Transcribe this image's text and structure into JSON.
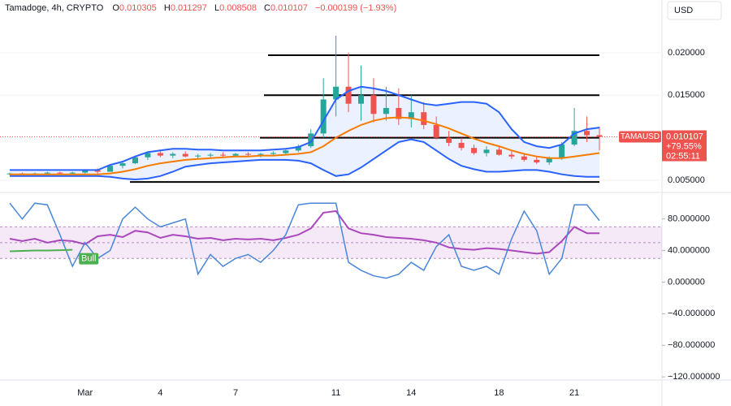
{
  "chart_data": [
    {
      "type": "candlestick",
      "title": "Tamadoge, 4h, CRYPTO",
      "ohlc_labels": [
        "O",
        "H",
        "L",
        "C"
      ],
      "change": "−0.000199 (−1.93%)",
      "currency": "USD",
      "symbol": "TAMAUSD",
      "change_pct": "+79.55%",
      "countdown": "02:55:11",
      "categories": [
        null,
        null,
        null,
        null,
        null,
        null,
        "Mar",
        null,
        null,
        null,
        null,
        null,
        "4",
        null,
        null,
        null,
        null,
        null,
        "7",
        null,
        null,
        null,
        null,
        null,
        null,
        null,
        "11",
        null,
        null,
        null,
        null,
        null,
        "14",
        null,
        null,
        null,
        null,
        null,
        null,
        "18",
        null,
        null,
        null,
        null,
        null,
        "21",
        null,
        null
      ],
      "open": [
        0.0057,
        0.0058,
        0.0057,
        0.0058,
        0.0059,
        0.0058,
        0.0059,
        0.0062,
        0.006,
        0.0067,
        0.007,
        0.0077,
        0.0082,
        0.0079,
        0.0081,
        0.0078,
        0.0079,
        0.008,
        0.0079,
        0.0081,
        0.008,
        0.0081,
        0.0082,
        0.0085,
        0.009,
        0.0105,
        0.0145,
        0.016,
        0.014,
        0.015,
        0.0128,
        0.0135,
        0.0122,
        0.013,
        0.0115,
        0.01,
        0.0094,
        0.0088,
        0.0082,
        0.0086,
        0.008,
        0.0078,
        0.0074,
        0.0071,
        0.0076,
        0.0092,
        0.0108,
        0.010305
      ],
      "high": [
        0.0059,
        0.0059,
        0.0059,
        0.006,
        0.006,
        0.006,
        0.0063,
        0.0064,
        0.0068,
        0.0072,
        0.0079,
        0.0084,
        0.0086,
        0.0083,
        0.0084,
        0.0081,
        0.0082,
        0.0083,
        0.0082,
        0.0083,
        0.0082,
        0.0084,
        0.0086,
        0.0092,
        0.011,
        0.017,
        0.022,
        0.02,
        0.0185,
        0.017,
        0.016,
        0.0158,
        0.015,
        0.0142,
        0.0125,
        0.0108,
        0.01,
        0.0092,
        0.009,
        0.009,
        0.0085,
        0.0082,
        0.0078,
        0.0078,
        0.0095,
        0.0135,
        0.0125,
        0.011297
      ],
      "low": [
        0.0056,
        0.0057,
        0.0056,
        0.0057,
        0.0057,
        0.0057,
        0.0058,
        0.0058,
        0.006,
        0.0064,
        0.0069,
        0.0074,
        0.0077,
        0.0076,
        0.0077,
        0.0075,
        0.0076,
        0.0078,
        0.0077,
        0.0078,
        0.0077,
        0.0079,
        0.008,
        0.0083,
        0.0088,
        0.01,
        0.0125,
        0.013,
        0.012,
        0.0118,
        0.012,
        0.0115,
        0.0112,
        0.011,
        0.0098,
        0.009,
        0.0085,
        0.008,
        0.0078,
        0.0079,
        0.0075,
        0.0072,
        0.0069,
        0.0068,
        0.0074,
        0.009,
        0.0095,
        0.008508
      ],
      "close": [
        0.0058,
        0.0057,
        0.0058,
        0.0059,
        0.0058,
        0.0059,
        0.0062,
        0.006,
        0.0067,
        0.007,
        0.0077,
        0.0082,
        0.0079,
        0.0081,
        0.0078,
        0.0079,
        0.008,
        0.0079,
        0.0081,
        0.008,
        0.0081,
        0.0082,
        0.0085,
        0.009,
        0.0105,
        0.0145,
        0.016,
        0.014,
        0.015,
        0.0128,
        0.0135,
        0.0122,
        0.013,
        0.0115,
        0.01,
        0.0094,
        0.0088,
        0.0082,
        0.0086,
        0.008,
        0.0078,
        0.0074,
        0.0071,
        0.0076,
        0.0092,
        0.0108,
        0.0103,
        0.010107
      ],
      "up_color": "#26a69a",
      "down_color": "#ef5350",
      "overlays": {
        "upper": [
          0.0062,
          0.0062,
          0.0062,
          0.0062,
          0.0062,
          0.0062,
          0.0062,
          0.0062,
          0.0068,
          0.0072,
          0.0078,
          0.0083,
          0.0085,
          0.0087,
          0.0087,
          0.0086,
          0.0086,
          0.0085,
          0.0085,
          0.0085,
          0.0085,
          0.0086,
          0.0087,
          0.0089,
          0.0095,
          0.012,
          0.0145,
          0.0155,
          0.016,
          0.0158,
          0.0155,
          0.015,
          0.0145,
          0.014,
          0.0138,
          0.014,
          0.0142,
          0.0142,
          0.014,
          0.013,
          0.011,
          0.0095,
          0.009,
          0.0088,
          0.0092,
          0.0105,
          0.011,
          0.0112
        ],
        "lower": [
          0.0055,
          0.0055,
          0.0055,
          0.0055,
          0.0055,
          0.0055,
          0.0055,
          0.0055,
          0.0054,
          0.0052,
          0.0051,
          0.0052,
          0.0055,
          0.006,
          0.0066,
          0.0068,
          0.007,
          0.0071,
          0.0072,
          0.0073,
          0.0074,
          0.0074,
          0.0074,
          0.0073,
          0.007,
          0.0062,
          0.0055,
          0.0057,
          0.0065,
          0.0075,
          0.0085,
          0.0095,
          0.0098,
          0.0095,
          0.0085,
          0.0075,
          0.0067,
          0.0063,
          0.006,
          0.006,
          0.0061,
          0.0062,
          0.0062,
          0.006,
          0.0057,
          0.0055,
          0.0054,
          0.0054
        ],
        "ma": [
          0.0057,
          0.0057,
          0.0057,
          0.0057,
          0.0057,
          0.0057,
          0.0057,
          0.0057,
          0.0058,
          0.006,
          0.0063,
          0.0067,
          0.007,
          0.0072,
          0.0074,
          0.0075,
          0.0076,
          0.0077,
          0.0078,
          0.0078,
          0.0079,
          0.0079,
          0.008,
          0.0081,
          0.0083,
          0.009,
          0.01,
          0.0108,
          0.0115,
          0.012,
          0.0123,
          0.0124,
          0.0123,
          0.012,
          0.0116,
          0.0111,
          0.0105,
          0.0099,
          0.0094,
          0.009,
          0.0085,
          0.0081,
          0.0078,
          0.0076,
          0.0076,
          0.0078,
          0.008,
          0.0082
        ],
        "band_color": "#2962ff",
        "ma_color": "#f57c00"
      },
      "levels": [
        0.0197,
        0.015,
        0.01,
        0.0048
      ],
      "ylim": [
        0.00376,
        0.02619
      ],
      "yticks": [
        {
          "value": 0.005,
          "label": "0.005000"
        },
        {
          "value": 0.015,
          "label": "0.015000"
        },
        {
          "value": 0.02,
          "label": "0.020000"
        }
      ]
    },
    {
      "type": "line",
      "series": [
        {
          "color": "#ab47bc",
          "values": [
            55,
            52,
            55,
            50,
            53,
            52,
            48,
            58,
            60,
            57,
            65,
            63,
            56,
            60,
            58,
            55,
            56,
            53,
            55,
            54,
            55,
            53,
            56,
            60,
            68,
            88,
            90,
            68,
            62,
            60,
            57,
            56,
            55,
            53,
            50,
            44,
            42,
            41,
            43,
            42,
            40,
            38,
            36,
            38,
            52,
            70,
            62,
            62
          ]
        },
        {
          "color": "#4a86d9",
          "values": [
            100,
            80,
            100,
            98,
            60,
            20,
            50,
            30,
            40,
            80,
            95,
            80,
            70,
            75,
            80,
            10,
            35,
            20,
            30,
            35,
            25,
            40,
            60,
            98,
            100,
            100,
            100,
            25,
            15,
            8,
            5,
            10,
            25,
            15,
            45,
            60,
            20,
            15,
            20,
            10,
            55,
            90,
            65,
            10,
            30,
            98,
            98,
            78
          ]
        },
        {
          "color": "#4caf50",
          "values": [
            39,
            39.5,
            40,
            40,
            40.5,
            41,
            null,
            null,
            null,
            null,
            null,
            null,
            null,
            null,
            null,
            null,
            null,
            null,
            null,
            null,
            null,
            null,
            null,
            null,
            null,
            null,
            null,
            null,
            null,
            null,
            null,
            null,
            null,
            null,
            null,
            null,
            null,
            null,
            null,
            null,
            null,
            null,
            null,
            null,
            null,
            null,
            null,
            null
          ]
        }
      ],
      "signal_label": "Bull",
      "band": [
        30,
        70
      ],
      "midline": 50,
      "ylim": [
        -124,
        110.5
      ],
      "yticks": [
        {
          "value": 80,
          "label": "80.000000"
        },
        {
          "value": 40,
          "label": "40.000000"
        },
        {
          "value": 0,
          "label": "0.000000"
        },
        {
          "value": -40,
          "label": "−40.000000"
        },
        {
          "value": -80,
          "label": "−80.000000"
        },
        {
          "value": -120,
          "label": "−120.000000"
        }
      ]
    }
  ]
}
